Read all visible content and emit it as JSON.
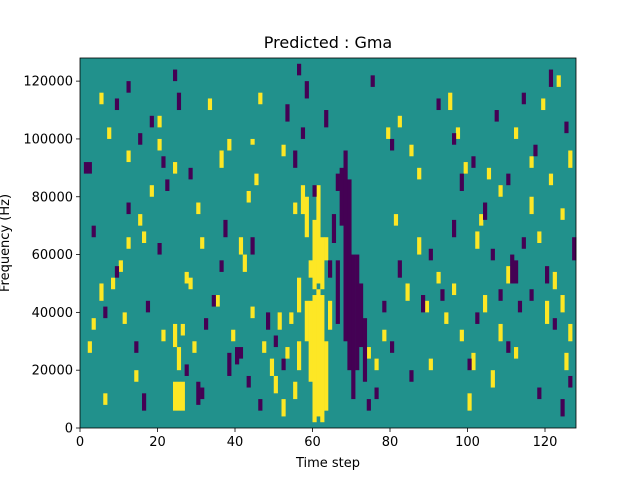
{
  "chart_data": {
    "type": "heatmap",
    "title": "Predicted : Gma",
    "xlabel": "Time step",
    "ylabel": "Frequency (Hz)",
    "xlim": [
      0,
      128
    ],
    "ylim": [
      0,
      128000
    ],
    "x_ticks": [
      0,
      20,
      40,
      60,
      80,
      100,
      120
    ],
    "y_ticks": [
      0,
      20000,
      40000,
      60000,
      80000,
      100000,
      120000
    ],
    "x_tick_labels": [
      "0",
      "20",
      "40",
      "60",
      "80",
      "100",
      "120"
    ],
    "y_tick_labels": [
      "0",
      "20000",
      "40000",
      "60000",
      "80000",
      "100000",
      "120000"
    ],
    "rows": 128,
    "cols": 128,
    "levels": {
      "background": 0,
      "low": -1,
      "high": 1
    },
    "colors": {
      "background": "#21918c",
      "low": "#440154",
      "high": "#fde725"
    },
    "high_cells": [
      [
        60,
        2,
        46
      ],
      [
        61,
        4,
        48
      ],
      [
        62,
        2,
        46
      ],
      [
        59,
        16,
        44
      ],
      [
        63,
        6,
        30
      ],
      [
        64,
        34,
        44
      ],
      [
        58,
        30,
        44
      ],
      [
        58,
        66,
        80
      ],
      [
        63,
        58,
        66
      ],
      [
        59,
        52,
        58
      ],
      [
        60,
        48,
        72
      ],
      [
        61,
        50,
        84
      ],
      [
        62,
        48,
        66
      ],
      [
        57,
        74,
        84
      ],
      [
        55,
        10,
        16
      ],
      [
        56,
        20,
        30
      ],
      [
        56,
        40,
        52
      ],
      [
        25,
        6,
        16
      ],
      [
        26,
        6,
        16
      ],
      [
        24,
        6,
        16
      ],
      [
        25,
        20,
        28
      ],
      [
        24,
        28,
        36
      ],
      [
        26,
        32,
        36
      ],
      [
        31,
        62,
        66
      ],
      [
        42,
        54,
        60
      ],
      [
        44,
        38,
        42
      ],
      [
        2,
        26,
        30
      ],
      [
        3,
        34,
        38
      ],
      [
        5,
        44,
        50
      ],
      [
        8,
        48,
        52
      ],
      [
        10,
        54,
        58
      ],
      [
        12,
        62,
        66
      ],
      [
        15,
        70,
        74
      ],
      [
        18,
        80,
        84
      ],
      [
        20,
        96,
        100
      ],
      [
        24,
        88,
        92
      ],
      [
        30,
        74,
        78
      ],
      [
        36,
        90,
        96
      ],
      [
        5,
        112,
        116
      ],
      [
        7,
        100,
        104
      ],
      [
        12,
        92,
        96
      ],
      [
        16,
        64,
        68
      ],
      [
        20,
        104,
        108
      ],
      [
        28,
        48,
        52
      ],
      [
        33,
        110,
        114
      ],
      [
        38,
        96,
        100
      ],
      [
        44,
        98,
        100
      ],
      [
        46,
        112,
        116
      ],
      [
        52,
        94,
        98
      ],
      [
        55,
        74,
        78
      ],
      [
        74,
        24,
        28
      ],
      [
        76,
        20,
        24
      ],
      [
        78,
        30,
        34
      ],
      [
        81,
        70,
        74
      ],
      [
        84,
        44,
        50
      ],
      [
        87,
        60,
        66
      ],
      [
        89,
        40,
        44
      ],
      [
        90,
        20,
        24
      ],
      [
        92,
        50,
        54
      ],
      [
        94,
        36,
        40
      ],
      [
        96,
        46,
        50
      ],
      [
        98,
        30,
        34
      ],
      [
        100,
        6,
        12
      ],
      [
        101,
        20,
        26
      ],
      [
        102,
        62,
        68
      ],
      [
        104,
        40,
        46
      ],
      [
        106,
        14,
        20
      ],
      [
        108,
        30,
        36
      ],
      [
        110,
        50,
        56
      ],
      [
        112,
        24,
        28
      ],
      [
        116,
        74,
        80
      ],
      [
        118,
        64,
        68
      ],
      [
        120,
        36,
        44
      ],
      [
        122,
        48,
        54
      ],
      [
        124,
        40,
        46
      ],
      [
        126,
        30,
        36
      ],
      [
        125,
        20,
        26
      ],
      [
        79,
        100,
        104
      ],
      [
        82,
        104,
        108
      ],
      [
        85,
        94,
        98
      ],
      [
        87,
        86,
        90
      ],
      [
        95,
        110,
        116
      ],
      [
        97,
        100,
        104
      ],
      [
        99,
        88,
        92
      ],
      [
        103,
        70,
        74
      ],
      [
        105,
        86,
        90
      ],
      [
        108,
        80,
        84
      ],
      [
        112,
        100,
        104
      ],
      [
        116,
        90,
        94
      ],
      [
        119,
        110,
        114
      ],
      [
        121,
        84,
        88
      ],
      [
        124,
        72,
        76
      ],
      [
        126,
        90,
        96
      ],
      [
        123,
        118,
        122
      ],
      [
        6,
        8,
        12
      ],
      [
        11,
        36,
        40
      ],
      [
        14,
        16,
        20
      ],
      [
        21,
        30,
        34
      ],
      [
        27,
        50,
        54
      ],
      [
        29,
        26,
        30
      ],
      [
        35,
        42,
        46
      ],
      [
        39,
        30,
        34
      ],
      [
        41,
        60,
        66
      ],
      [
        43,
        78,
        82
      ],
      [
        45,
        84,
        88
      ],
      [
        47,
        26,
        30
      ],
      [
        49,
        18,
        24
      ],
      [
        50,
        12,
        18
      ],
      [
        51,
        34,
        40
      ],
      [
        52,
        4,
        10
      ],
      [
        53,
        24,
        28
      ],
      [
        54,
        36,
        40
      ]
    ],
    "low_cells": [
      [
        69,
        20,
        86
      ],
      [
        70,
        10,
        60
      ],
      [
        71,
        20,
        60
      ],
      [
        72,
        28,
        50
      ],
      [
        68,
        30,
        96
      ],
      [
        67,
        70,
        90
      ],
      [
        73,
        16,
        38
      ],
      [
        66,
        36,
        58
      ],
      [
        65,
        64,
        74
      ],
      [
        64,
        52,
        58
      ],
      [
        1,
        88,
        92
      ],
      [
        2,
        88,
        92
      ],
      [
        16,
        6,
        12
      ],
      [
        25,
        110,
        116
      ],
      [
        30,
        8,
        16
      ],
      [
        31,
        10,
        14
      ],
      [
        38,
        18,
        26
      ],
      [
        40,
        22,
        28
      ],
      [
        44,
        60,
        66
      ],
      [
        53,
        106,
        112
      ],
      [
        55,
        90,
        96
      ],
      [
        57,
        100,
        104
      ],
      [
        58,
        114,
        120
      ],
      [
        60,
        80,
        84
      ],
      [
        74,
        6,
        10
      ],
      [
        76,
        10,
        14
      ],
      [
        78,
        40,
        44
      ],
      [
        80,
        26,
        30
      ],
      [
        82,
        52,
        58
      ],
      [
        85,
        16,
        20
      ],
      [
        88,
        40,
        46
      ],
      [
        90,
        58,
        62
      ],
      [
        93,
        44,
        48
      ],
      [
        96,
        66,
        72
      ],
      [
        98,
        82,
        88
      ],
      [
        100,
        20,
        24
      ],
      [
        102,
        36,
        40
      ],
      [
        104,
        72,
        78
      ],
      [
        106,
        58,
        62
      ],
      [
        108,
        44,
        48
      ],
      [
        110,
        26,
        30
      ],
      [
        111,
        50,
        60
      ],
      [
        112,
        50,
        58
      ],
      [
        113,
        40,
        44
      ],
      [
        114,
        62,
        66
      ],
      [
        116,
        44,
        48
      ],
      [
        118,
        10,
        14
      ],
      [
        120,
        50,
        56
      ],
      [
        122,
        34,
        38
      ],
      [
        124,
        4,
        10
      ],
      [
        126,
        14,
        18
      ],
      [
        127,
        58,
        66
      ],
      [
        3,
        66,
        70
      ],
      [
        6,
        38,
        42
      ],
      [
        9,
        52,
        56
      ],
      [
        12,
        74,
        78
      ],
      [
        14,
        26,
        30
      ],
      [
        17,
        40,
        44
      ],
      [
        20,
        60,
        64
      ],
      [
        22,
        82,
        86
      ],
      [
        27,
        18,
        22
      ],
      [
        32,
        34,
        38
      ],
      [
        34,
        42,
        46
      ],
      [
        36,
        54,
        58
      ],
      [
        41,
        24,
        28
      ],
      [
        43,
        14,
        18
      ],
      [
        46,
        6,
        10
      ],
      [
        48,
        34,
        40
      ],
      [
        50,
        28,
        32
      ],
      [
        52,
        20,
        24
      ],
      [
        9,
        110,
        114
      ],
      [
        12,
        116,
        120
      ],
      [
        15,
        98,
        102
      ],
      [
        18,
        104,
        108
      ],
      [
        21,
        90,
        94
      ],
      [
        24,
        120,
        124
      ],
      [
        28,
        86,
        90
      ],
      [
        37,
        66,
        72
      ],
      [
        56,
        122,
        126
      ],
      [
        63,
        104,
        110
      ],
      [
        66,
        82,
        88
      ],
      [
        75,
        118,
        122
      ],
      [
        80,
        96,
        100
      ],
      [
        92,
        110,
        114
      ],
      [
        96,
        98,
        102
      ],
      [
        101,
        90,
        94
      ],
      [
        107,
        106,
        110
      ],
      [
        110,
        84,
        88
      ],
      [
        114,
        112,
        116
      ],
      [
        117,
        94,
        98
      ],
      [
        121,
        118,
        124
      ],
      [
        125,
        102,
        106
      ]
    ]
  }
}
